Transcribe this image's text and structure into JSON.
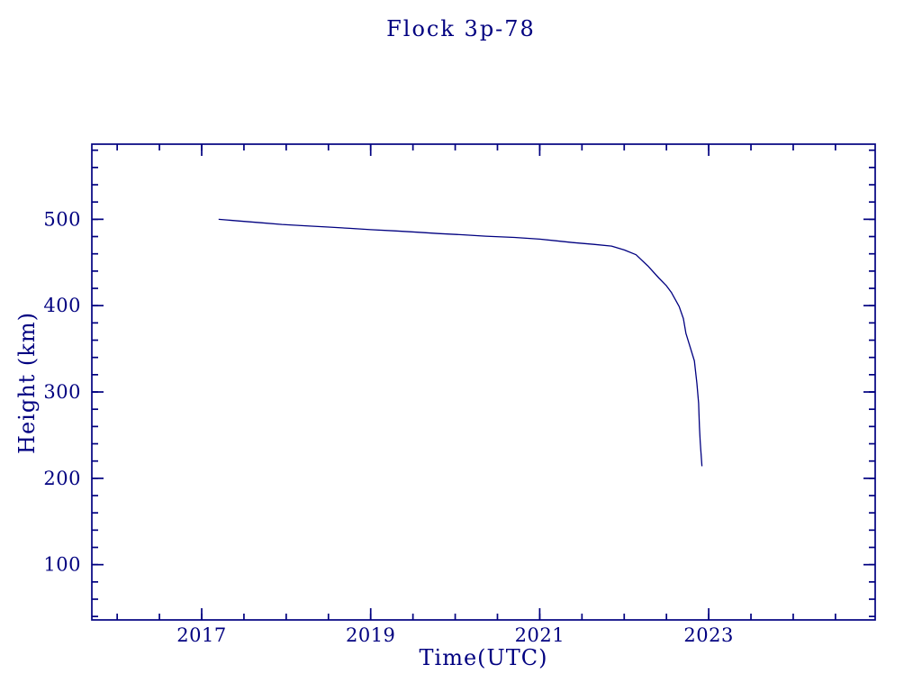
{
  "page": {
    "background_color": "#ffffff"
  },
  "chart_data": {
    "type": "line",
    "title": "Flock 3p-78",
    "xlabel": "Time(UTC)",
    "ylabel": "Height (km)",
    "xlim": [
      2015.7,
      2024.97
    ],
    "ylim": [
      36,
      587
    ],
    "grid": false,
    "legend": "none",
    "tick_style": "inward-all-sides",
    "x_ticks": [
      {
        "value": 2017,
        "label": "2017"
      },
      {
        "value": 2019,
        "label": "2019"
      },
      {
        "value": 2021,
        "label": "2021"
      },
      {
        "value": 2023,
        "label": "2023"
      }
    ],
    "x_minor": {
      "start": 2016,
      "end": 2024.5,
      "step": 0.5
    },
    "y_ticks": [
      {
        "value": 100,
        "label": "100"
      },
      {
        "value": 200,
        "label": "200"
      },
      {
        "value": 300,
        "label": "300"
      },
      {
        "value": 400,
        "label": "400"
      },
      {
        "value": 500,
        "label": "500"
      }
    ],
    "y_minor": {
      "start": 40,
      "end": 580,
      "step": 20
    },
    "colors": {
      "line": "#000080",
      "axis": "#000080",
      "text": "#000080",
      "background": "#ffffff"
    },
    "series": [
      {
        "name": "Flock 3p-78 height",
        "color": "#000080",
        "points": [
          [
            2017.2,
            500
          ],
          [
            2017.45,
            498
          ],
          [
            2017.7,
            496
          ],
          [
            2017.95,
            494
          ],
          [
            2018.23,
            492.5
          ],
          [
            2018.5,
            491
          ],
          [
            2018.75,
            489.5
          ],
          [
            2019.0,
            488
          ],
          [
            2019.3,
            486.5
          ],
          [
            2019.55,
            485
          ],
          [
            2019.8,
            483.5
          ],
          [
            2020.1,
            482
          ],
          [
            2020.36,
            480.5
          ],
          [
            2020.7,
            479
          ],
          [
            2021.0,
            477
          ],
          [
            2021.2,
            475
          ],
          [
            2021.39,
            473
          ],
          [
            2021.64,
            471
          ],
          [
            2021.85,
            469
          ],
          [
            2022.0,
            464.5
          ],
          [
            2022.14,
            459
          ],
          [
            2022.28,
            446
          ],
          [
            2022.41,
            432
          ],
          [
            2022.5,
            423
          ],
          [
            2022.56,
            415
          ],
          [
            2022.65,
            399
          ],
          [
            2022.7,
            385
          ],
          [
            2022.73,
            368
          ],
          [
            2022.78,
            352
          ],
          [
            2022.83,
            336
          ],
          [
            2022.86,
            310
          ],
          [
            2022.88,
            287
          ],
          [
            2022.89,
            260
          ],
          [
            2022.9,
            242
          ],
          [
            2022.92,
            214
          ]
        ]
      }
    ]
  }
}
